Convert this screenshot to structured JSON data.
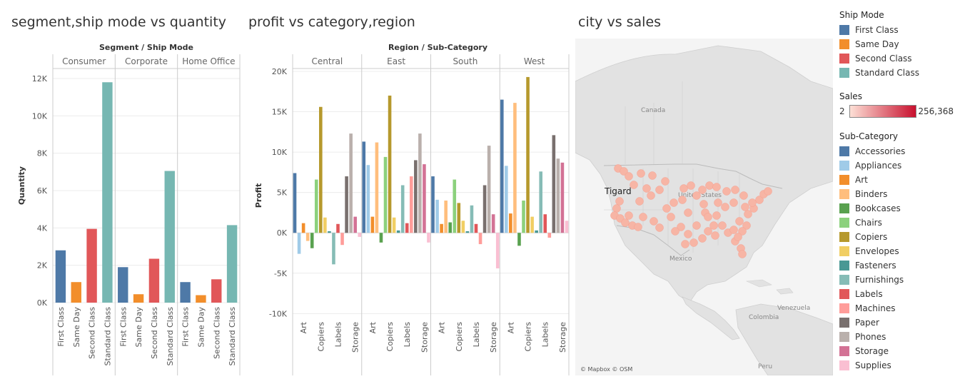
{
  "titles": {
    "chart1": "segment,ship mode vs quantity",
    "chart2": "profit vs category,region",
    "chart3": "city vs sales"
  },
  "legends": {
    "ship_mode": {
      "title": "Ship Mode",
      "items": [
        {
          "label": "First Class",
          "color": "#4e79a7"
        },
        {
          "label": "Same Day",
          "color": "#f28e2b"
        },
        {
          "label": "Second Class",
          "color": "#e15759"
        },
        {
          "label": "Standard Class",
          "color": "#76b7b2"
        }
      ]
    },
    "sales": {
      "title": "Sales",
      "min": "2",
      "max": "256,368",
      "color_low": "#fde0d6",
      "color_high": "#c8102e"
    },
    "sub_category": {
      "title": "Sub-Category",
      "items": [
        {
          "label": "Accessories",
          "color": "#4e79a7"
        },
        {
          "label": "Appliances",
          "color": "#a0cbe8"
        },
        {
          "label": "Art",
          "color": "#f28e2b"
        },
        {
          "label": "Binders",
          "color": "#ffbe7d"
        },
        {
          "label": "Bookcases",
          "color": "#59a14f"
        },
        {
          "label": "Chairs",
          "color": "#8cd17d"
        },
        {
          "label": "Copiers",
          "color": "#b6992d"
        },
        {
          "label": "Envelopes",
          "color": "#f1ce63"
        },
        {
          "label": "Fasteners",
          "color": "#499894"
        },
        {
          "label": "Furnishings",
          "color": "#86bcb6"
        },
        {
          "label": "Labels",
          "color": "#e15759"
        },
        {
          "label": "Machines",
          "color": "#ff9d9a"
        },
        {
          "label": "Paper",
          "color": "#79706e"
        },
        {
          "label": "Phones",
          "color": "#bab0ac"
        },
        {
          "label": "Storage",
          "color": "#d37295"
        },
        {
          "label": "Supplies",
          "color": "#fabfd2"
        }
      ]
    }
  },
  "map": {
    "attribution": "© Mapbox © OSM",
    "country_labels": [
      "Canada",
      "United States",
      "Mexico",
      "Venezuela",
      "Colombia",
      "Peru"
    ],
    "city_label": "Tigard",
    "land_color": "#e0e0e0",
    "water_color": "#f5f5f5",
    "point_color": "#f7b5a5"
  },
  "chart_data": [
    {
      "type": "bar",
      "header": "Segment / Ship Mode",
      "ylabel": "Quantity",
      "ylim": [
        0,
        12000
      ],
      "yticks": [
        0,
        2000,
        4000,
        6000,
        8000,
        10000,
        12000
      ],
      "ytick_labels": [
        "0K",
        "2K",
        "4K",
        "6K",
        "8K",
        "10K",
        "12K"
      ],
      "segments": [
        "Consumer",
        "Corporate",
        "Home Office"
      ],
      "categories": [
        "First Class",
        "Same Day",
        "Second Class",
        "Standard Class"
      ],
      "series": [
        {
          "segment": "Consumer",
          "values": [
            2800,
            1100,
            3950,
            11800
          ]
        },
        {
          "segment": "Corporate",
          "values": [
            1900,
            450,
            2350,
            7050
          ]
        },
        {
          "segment": "Home Office",
          "values": [
            1100,
            400,
            1250,
            4150
          ]
        }
      ]
    },
    {
      "type": "bar",
      "header": "Region / Sub-Category",
      "ylabel": "Profit",
      "ylim": [
        -10500,
        20000
      ],
      "yticks": [
        -10000,
        -5000,
        0,
        5000,
        10000,
        15000,
        20000
      ],
      "ytick_labels": [
        "-10K",
        "-5K",
        "0K",
        "5K",
        "10K",
        "15K",
        "20K"
      ],
      "regions": [
        "Central",
        "East",
        "South",
        "West"
      ],
      "categories": [
        "Accessories",
        "Appliances",
        "Art",
        "Binders",
        "Bookcases",
        "Chairs",
        "Copiers",
        "Envelopes",
        "Fasteners",
        "Furnishings",
        "Labels",
        "Machines",
        "Paper",
        "Phones",
        "Storage",
        "Supplies"
      ],
      "x_tick_labels": [
        "Art",
        "Copiers",
        "Labels",
        "Storage"
      ],
      "series": [
        {
          "region": "Central",
          "values": [
            7400,
            -2600,
            1200,
            -1000,
            -1900,
            6600,
            15600,
            1900,
            200,
            -3900,
            1100,
            -1500,
            7000,
            12300,
            2000,
            -500
          ]
        },
        {
          "region": "East",
          "values": [
            11300,
            8400,
            2000,
            11200,
            -1200,
            9400,
            17000,
            1900,
            300,
            5900,
            1200,
            7000,
            9000,
            12300,
            8500,
            -1200
          ]
        },
        {
          "region": "South",
          "values": [
            7000,
            4100,
            1100,
            4000,
            1300,
            6600,
            3700,
            1500,
            200,
            3400,
            1100,
            -1400,
            5900,
            10800,
            2300,
            -4400
          ]
        },
        {
          "region": "West",
          "values": [
            16500,
            8300,
            2400,
            16100,
            -1600,
            4000,
            19300,
            2000,
            300,
            7600,
            2300,
            -600,
            12100,
            9200,
            8700,
            1500
          ]
        }
      ]
    },
    {
      "type": "map",
      "title": "city vs sales",
      "labeled_point": "Tigard"
    }
  ]
}
